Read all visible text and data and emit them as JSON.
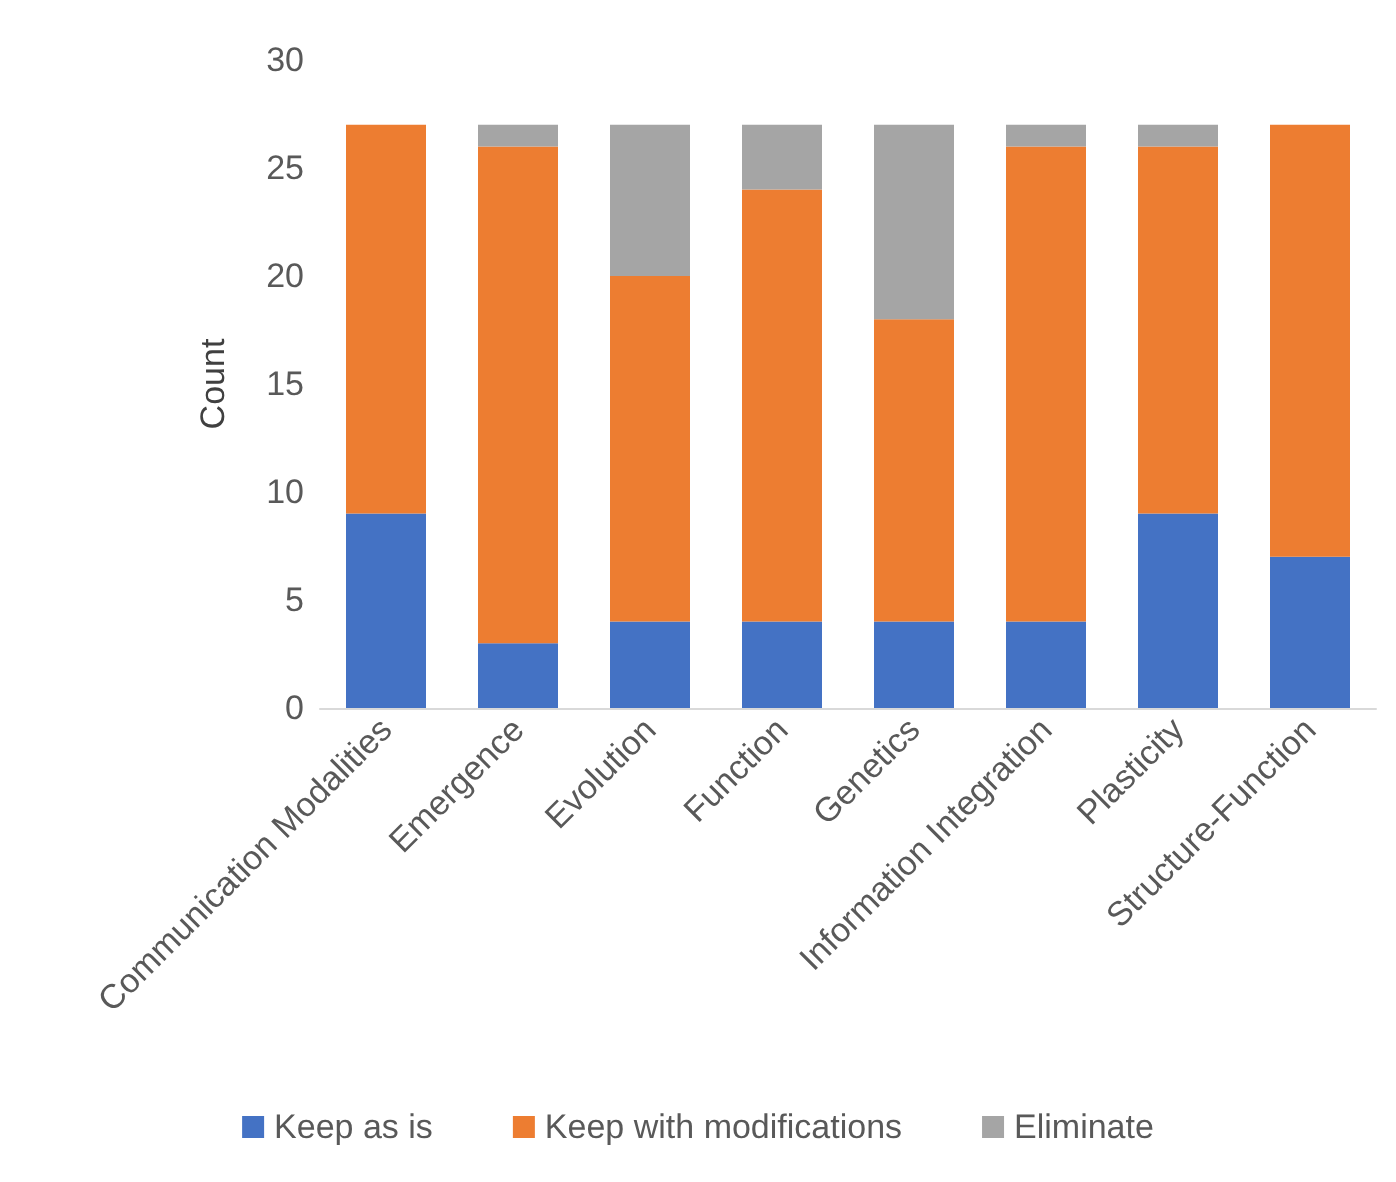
{
  "chart_data": {
    "type": "bar",
    "ylabel": "Count",
    "stacked": true,
    "categories": [
      "Communication Modalities",
      "Emergence",
      "Evolution",
      "Function",
      "Genetics",
      "Information Integration",
      "Plasticity",
      "Structure-Function"
    ],
    "series": [
      {
        "name": "Keep as is",
        "color": "#4472c4",
        "values": [
          9,
          3,
          4,
          4,
          4,
          4,
          9,
          7
        ]
      },
      {
        "name": "Keep with modifications",
        "color": "#ed7d31",
        "values": [
          18,
          23,
          16,
          20,
          14,
          22,
          17,
          20
        ]
      },
      {
        "name": "Eliminate",
        "color": "#a5a5a5",
        "values": [
          0,
          1,
          7,
          3,
          9,
          1,
          1,
          0
        ]
      }
    ],
    "ylim": [
      0,
      30
    ],
    "yticks": [
      0,
      5,
      10,
      15,
      20,
      25,
      30
    ],
    "grid": false,
    "legend": "bottom"
  }
}
